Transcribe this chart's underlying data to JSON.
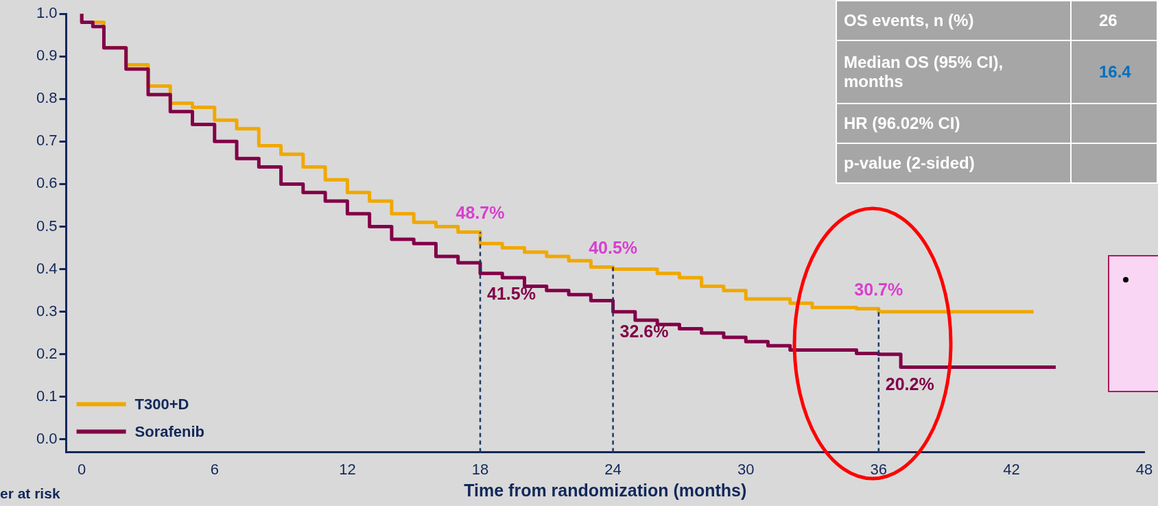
{
  "chart_data": {
    "type": "step",
    "xlabel": "Time from randomization (months)",
    "xlim": [
      -0.7,
      48
    ],
    "xticks": [
      0,
      6,
      12,
      18,
      24,
      30,
      36,
      42,
      48
    ],
    "ylim": [
      -0.03,
      1
    ],
    "yticks": [
      {
        "value": 0,
        "label": "0.0"
      },
      {
        "value": 0.1,
        "label": "0.1"
      },
      {
        "value": 0.2,
        "label": "0.2"
      },
      {
        "value": 0.3,
        "label": "0.3"
      },
      {
        "value": 0.4,
        "label": "0.4"
      },
      {
        "value": 0.5,
        "label": "0.5"
      },
      {
        "value": 0.6,
        "label": "0.6"
      },
      {
        "value": 0.7,
        "label": "0.7"
      },
      {
        "value": 0.8,
        "label": "0.8"
      },
      {
        "value": 0.9,
        "label": "0.9"
      },
      {
        "value": 1,
        "label": "1.0"
      }
    ],
    "grid": false,
    "legend": "bottom left",
    "line_style": "solid",
    "series": [
      {
        "name": "T300+D",
        "color": "#f0a800",
        "x": [
          0,
          1,
          2,
          3,
          4,
          5,
          6,
          7,
          8,
          9,
          10,
          11,
          12,
          13,
          14,
          15,
          16,
          17,
          18,
          19,
          20,
          21,
          22,
          23,
          24,
          25,
          26,
          27,
          28,
          29,
          30,
          31,
          32,
          33,
          34,
          35,
          36,
          37,
          38,
          40,
          43
        ],
        "values": [
          1.0,
          0.98,
          0.92,
          0.88,
          0.83,
          0.79,
          0.78,
          0.75,
          0.73,
          0.69,
          0.67,
          0.64,
          0.61,
          0.58,
          0.56,
          0.53,
          0.51,
          0.5,
          0.487,
          0.46,
          0.45,
          0.44,
          0.43,
          0.42,
          0.405,
          0.4,
          0.4,
          0.39,
          0.38,
          0.36,
          0.35,
          0.33,
          0.33,
          0.32,
          0.31,
          0.31,
          0.307,
          0.3,
          0.3,
          0.3,
          0.3
        ]
      },
      {
        "name": "Sorafenib",
        "color": "#820048",
        "x": [
          0,
          0.5,
          1,
          2,
          3,
          4,
          5,
          6,
          7,
          8,
          9,
          10,
          11,
          12,
          13,
          14,
          15,
          16,
          17,
          18,
          19,
          20,
          21,
          22,
          23,
          24,
          25,
          26,
          27,
          28,
          29,
          30,
          31,
          32,
          33,
          34,
          35,
          36,
          37,
          37.5,
          44
        ],
        "values": [
          1.0,
          0.98,
          0.97,
          0.92,
          0.87,
          0.81,
          0.77,
          0.74,
          0.7,
          0.66,
          0.64,
          0.6,
          0.58,
          0.56,
          0.53,
          0.5,
          0.47,
          0.46,
          0.43,
          0.415,
          0.39,
          0.38,
          0.36,
          0.35,
          0.34,
          0.326,
          0.3,
          0.28,
          0.27,
          0.26,
          0.25,
          0.24,
          0.23,
          0.22,
          0.21,
          0.21,
          0.21,
          0.202,
          0.2,
          0.17,
          0.17
        ]
      }
    ],
    "ref_lines": [
      {
        "axis": "x",
        "value": 18,
        "color": "#1f3864",
        "line_style": "dashed"
      },
      {
        "axis": "x",
        "value": 24,
        "color": "#1f3864",
        "line_style": "dashed"
      },
      {
        "axis": "x",
        "value": 36,
        "color": "#1f3864",
        "line_style": "dashed"
      }
    ],
    "annotations": [
      "OS events, n (%)",
      "Median OS (95% CI), months",
      "HR (96.02% CI)",
      "p-value (2-sided)",
      "26",
      "16.4",
      "er at risk",
      {
        "text": "48.7%",
        "x": 18,
        "y": 0.487
      },
      {
        "text": "41.5%",
        "x": 18,
        "y": 0.415
      },
      {
        "text": "40.5%",
        "x": 24,
        "y": 0.405
      },
      {
        "text": "32.6%",
        "x": 24,
        "y": 0.326
      },
      {
        "text": "30.7%",
        "x": 36,
        "y": 0.307
      },
      {
        "text": "20.2%",
        "x": 36,
        "y": 0.202
      }
    ]
  }
}
